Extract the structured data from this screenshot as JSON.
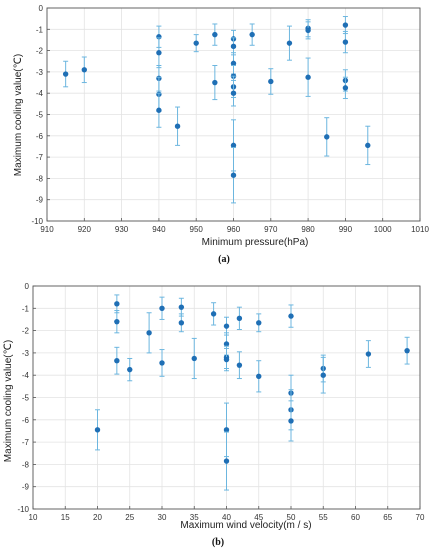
{
  "colors": {
    "marker": "#1f6fb5",
    "errorbar": "#6cb6df",
    "grid": "#e3e3e3",
    "axis": "#555555"
  },
  "chart_data": [
    {
      "type": "scatter",
      "panel_label": "(a)",
      "xlabel": "Minimum pressure(hPa)",
      "ylabel": "Maximum cooling value(℃)",
      "xlim": [
        910,
        1010
      ],
      "ylim": [
        -10,
        0
      ],
      "xticks": [
        "910",
        "920",
        "930",
        "940",
        "950",
        "960",
        "970",
        "980",
        "990",
        "1000",
        "1010"
      ],
      "yticks": [
        "0",
        "-1",
        "-2",
        "-3",
        "-4",
        "-5",
        "-6",
        "-7",
        "-8",
        "-9",
        "-10"
      ],
      "grid": true,
      "points": [
        {
          "x": 915,
          "y": -3.1,
          "err": 0.6
        },
        {
          "x": 920,
          "y": -2.9,
          "err": 0.6
        },
        {
          "x": 940,
          "y": -1.35,
          "err": 0.5
        },
        {
          "x": 940,
          "y": -2.1,
          "err": 0.7
        },
        {
          "x": 940,
          "y": -3.3,
          "err": 0.6
        },
        {
          "x": 940,
          "y": -4.05,
          "err": 0.8
        },
        {
          "x": 940,
          "y": -4.8,
          "err": 0.8
        },
        {
          "x": 945,
          "y": -5.55,
          "err": 0.9
        },
        {
          "x": 950,
          "y": -1.65,
          "err": 0.4
        },
        {
          "x": 955,
          "y": -1.25,
          "err": 0.5
        },
        {
          "x": 955,
          "y": -3.5,
          "err": 0.8
        },
        {
          "x": 960,
          "y": -1.45,
          "err": 0.4
        },
        {
          "x": 960,
          "y": -1.8,
          "err": 0.4
        },
        {
          "x": 960,
          "y": -2.6,
          "err": 0.5
        },
        {
          "x": 960,
          "y": -3.2,
          "err": 0.5
        },
        {
          "x": 960,
          "y": -3.7,
          "err": 0.5
        },
        {
          "x": 960,
          "y": -4.0,
          "err": 0.6
        },
        {
          "x": 960,
          "y": -6.45,
          "err": 1.2
        },
        {
          "x": 960,
          "y": -7.85,
          "err": 1.3
        },
        {
          "x": 965,
          "y": -1.25,
          "err": 0.5
        },
        {
          "x": 970,
          "y": -3.45,
          "err": 0.6
        },
        {
          "x": 975,
          "y": -1.65,
          "err": 0.8
        },
        {
          "x": 980,
          "y": -0.95,
          "err": 0.4
        },
        {
          "x": 980,
          "y": -1.05,
          "err": 0.4
        },
        {
          "x": 980,
          "y": -3.25,
          "err": 0.9
        },
        {
          "x": 985,
          "y": -6.05,
          "err": 0.9
        },
        {
          "x": 990,
          "y": -0.8,
          "err": 0.4
        },
        {
          "x": 990,
          "y": -1.6,
          "err": 0.5
        },
        {
          "x": 990,
          "y": -3.4,
          "err": 0.5
        },
        {
          "x": 990,
          "y": -3.75,
          "err": 0.5
        },
        {
          "x": 996,
          "y": -6.45,
          "err": 0.9
        }
      ]
    },
    {
      "type": "scatter",
      "panel_label": "(b)",
      "xlabel": "Maximum wind velocity(m / s)",
      "ylabel": "Maximum cooling value(℃)",
      "xlim": [
        10,
        70
      ],
      "ylim": [
        -10,
        0
      ],
      "xticks": [
        "10",
        "15",
        "20",
        "25",
        "30",
        "35",
        "40",
        "45",
        "50",
        "55",
        "60",
        "65",
        "70"
      ],
      "yticks": [
        "0",
        "-1",
        "-2",
        "-3",
        "-4",
        "-5",
        "-6",
        "-7",
        "-8",
        "-9",
        "-10"
      ],
      "grid": true,
      "points": [
        {
          "x": 20,
          "y": -6.45,
          "err": 0.9
        },
        {
          "x": 23,
          "y": -0.8,
          "err": 0.4
        },
        {
          "x": 23,
          "y": -1.6,
          "err": 0.5
        },
        {
          "x": 23,
          "y": -3.35,
          "err": 0.6
        },
        {
          "x": 25,
          "y": -3.75,
          "err": 0.5
        },
        {
          "x": 28,
          "y": -2.1,
          "err": 0.9
        },
        {
          "x": 30,
          "y": -1.0,
          "err": 0.5
        },
        {
          "x": 30,
          "y": -3.45,
          "err": 0.6
        },
        {
          "x": 33,
          "y": -0.95,
          "err": 0.4
        },
        {
          "x": 33,
          "y": -1.65,
          "err": 0.4
        },
        {
          "x": 35,
          "y": -3.25,
          "err": 0.9
        },
        {
          "x": 38,
          "y": -1.25,
          "err": 0.5
        },
        {
          "x": 40,
          "y": -1.8,
          "err": 0.4
        },
        {
          "x": 40,
          "y": -2.6,
          "err": 0.5
        },
        {
          "x": 40,
          "y": -3.2,
          "err": 0.5
        },
        {
          "x": 40,
          "y": -3.3,
          "err": 0.5
        },
        {
          "x": 40,
          "y": -6.45,
          "err": 1.2
        },
        {
          "x": 40,
          "y": -7.85,
          "err": 1.3
        },
        {
          "x": 42,
          "y": -1.45,
          "err": 0.5
        },
        {
          "x": 42,
          "y": -3.55,
          "err": 0.6
        },
        {
          "x": 45,
          "y": -1.65,
          "err": 0.4
        },
        {
          "x": 45,
          "y": -4.05,
          "err": 0.7
        },
        {
          "x": 50,
          "y": -1.35,
          "err": 0.5
        },
        {
          "x": 50,
          "y": -4.8,
          "err": 0.8
        },
        {
          "x": 50,
          "y": -5.55,
          "err": 0.9
        },
        {
          "x": 50,
          "y": -6.05,
          "err": 0.9
        },
        {
          "x": 55,
          "y": -3.7,
          "err": 0.6
        },
        {
          "x": 55,
          "y": -4.0,
          "err": 0.8
        },
        {
          "x": 62,
          "y": -3.05,
          "err": 0.6
        },
        {
          "x": 68,
          "y": -2.9,
          "err": 0.6
        }
      ]
    }
  ]
}
